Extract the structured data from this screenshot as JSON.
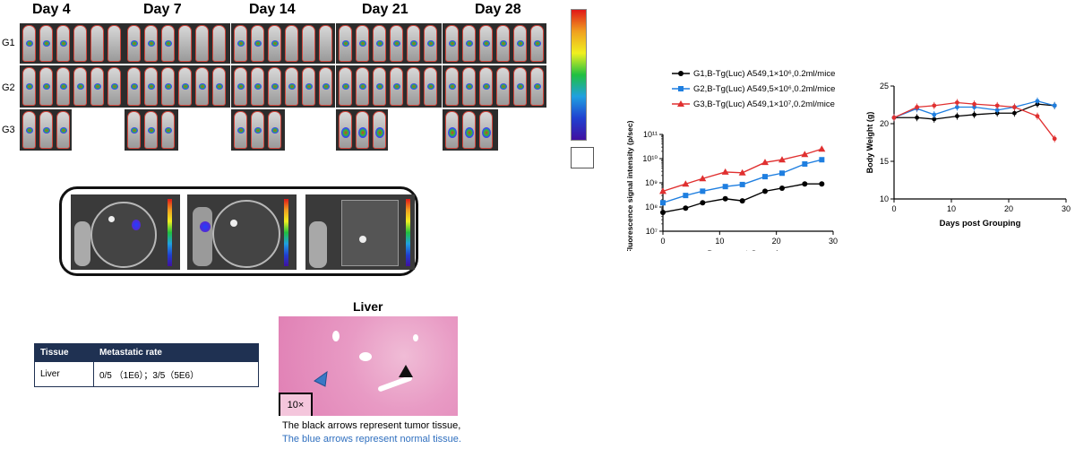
{
  "imaging": {
    "days": [
      "Day 4",
      "Day 7",
      "Day 14",
      "Day 21",
      "Day 28"
    ],
    "groups": [
      "G1",
      "G2",
      "G3"
    ]
  },
  "chart_data": [
    {
      "type": "line",
      "xlabel": "Days post Grouping",
      "ylabel": "Fluorescence signal intensity (p/sec)",
      "yscale": "log",
      "xlim": [
        0,
        30
      ],
      "ylim": [
        10000000,
        100000000000
      ],
      "xticks": [
        "0",
        "10",
        "20",
        "30"
      ],
      "yticks": [
        "10⁷",
        "10⁸",
        "10⁹",
        "10¹⁰",
        "10¹¹"
      ],
      "legend_position": "top",
      "x": [
        0,
        4,
        7,
        11,
        14,
        18,
        21,
        25,
        28
      ],
      "series": [
        {
          "name": "G1,B-Tg(Luc) A549,1×10⁶,0.2ml/mice",
          "color": "#000000",
          "marker": "circle",
          "values": [
            60000000,
            90000000,
            150000000,
            220000000,
            180000000,
            450000000,
            600000000,
            900000000,
            900000000
          ]
        },
        {
          "name": "G2,B-Tg(Luc) A549,5×10⁶,0.2ml/mice",
          "color": "#1f7fe0",
          "marker": "square",
          "values": [
            150000000,
            300000000,
            450000000,
            700000000,
            850000000,
            1800000000,
            2500000000,
            6000000000,
            9000000000
          ]
        },
        {
          "name": "G3,B-Tg(Luc) A549,1×10⁷,0.2ml/mice",
          "color": "#e03030",
          "marker": "triangle",
          "values": [
            450000000,
            900000000,
            1500000000,
            2800000000,
            2600000000,
            7000000000,
            9000000000,
            15000000000,
            25000000000
          ]
        }
      ]
    },
    {
      "type": "line",
      "xlabel": "Days post Grouping",
      "ylabel": "Body Weight (g)",
      "xlim": [
        0,
        30
      ],
      "ylim": [
        10,
        25
      ],
      "xticks": [
        "0",
        "10",
        "20",
        "30"
      ],
      "yticks": [
        "10",
        "15",
        "20",
        "25"
      ],
      "x": [
        0,
        4,
        7,
        11,
        14,
        18,
        21,
        25,
        28
      ],
      "series": [
        {
          "color": "#000000",
          "values": [
            20.8,
            20.8,
            20.6,
            21.0,
            21.2,
            21.4,
            21.4,
            22.6,
            22.4
          ]
        },
        {
          "color": "#1f7fe0",
          "values": [
            20.8,
            22.0,
            21.2,
            22.2,
            22.2,
            21.8,
            22.2,
            23.0,
            22.4
          ]
        },
        {
          "color": "#e03030",
          "values": [
            20.8,
            22.2,
            22.4,
            22.8,
            22.6,
            22.4,
            22.2,
            21.0,
            18.0
          ]
        }
      ]
    }
  ],
  "metastasis_table": {
    "headers": [
      "Tissue",
      "Metastatic rate"
    ],
    "rows": [
      [
        "Liver",
        "0/5 （1E6）；3/5（5E6）"
      ]
    ]
  },
  "histology": {
    "title": "Liver",
    "magnification": "10×",
    "caption_black": "The black arrows represent tumor tissue,",
    "caption_blue": "The blue arrows represent normal tissue."
  },
  "colors": {
    "table_header": "#1f3152",
    "blue_caption": "#2f6fbf",
    "g1": "#000000",
    "g2": "#1f7fe0",
    "g3": "#e03030"
  }
}
